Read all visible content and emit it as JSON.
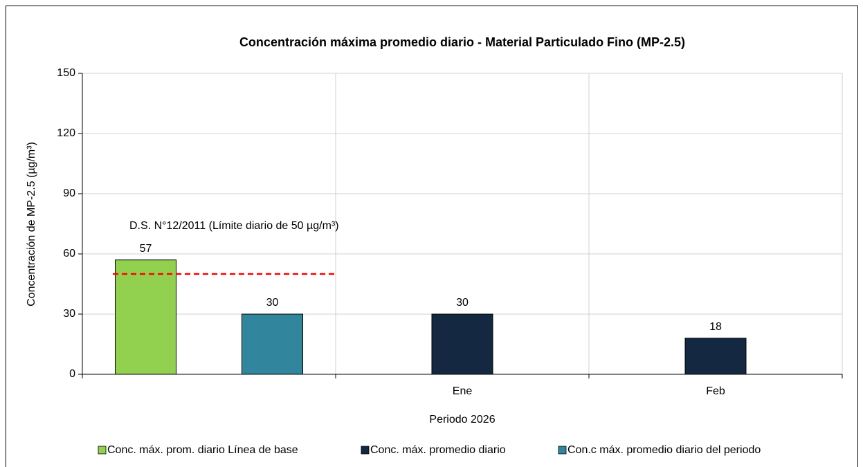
{
  "chart_data": {
    "type": "bar",
    "title": "Concentración máxima promedio diario - Material Particulado Fino (MP-2.5)",
    "x_label": "Periodo 2026",
    "y_label": "Concentración de MP-2.5 (µg/m³)",
    "categories": [
      null,
      "Ene",
      "Feb"
    ],
    "series": [
      {
        "name": "Conc. máx. prom. diario Línea de base",
        "color": "#92d050",
        "values": [
          57,
          null,
          null
        ]
      },
      {
        "name": "Conc. máx. promedio diario",
        "color": "#142841",
        "values": [
          null,
          30,
          18
        ]
      },
      {
        "name": "Con.c máx. promedio diario del periodo",
        "color": "#31859c",
        "values": [
          30,
          null,
          null
        ]
      }
    ],
    "reference_line": {
      "value": 50,
      "label": "D.S. N°12/2011 (Límite diario de 50 µg/m³)",
      "color": "#ff0000"
    },
    "ylim": [
      0,
      150
    ],
    "yticks": [
      0,
      30,
      60,
      90,
      120,
      150
    ],
    "grid": true,
    "legend": "bottom"
  }
}
